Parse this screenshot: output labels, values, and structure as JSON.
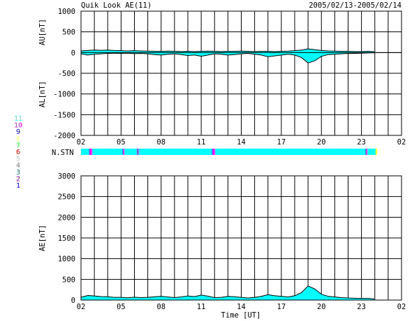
{
  "header": {
    "title": "Quik Look AE(11)",
    "date_range": "2005/02/13-2005/02/14"
  },
  "colors": {
    "fill": "#00ffff",
    "line": "#000000",
    "grid": "#000000",
    "stn_bar": "#00ffff",
    "stn_markers": "#ff00ff",
    "stn_end": "#ffff00"
  },
  "chart_data": [
    {
      "type": "area",
      "title": "",
      "ylabel_upper": "AU[nT]",
      "ylabel_lower": "AL[nT]",
      "ylim": [
        -2000,
        1000
      ],
      "yticks": [
        "1000",
        "500",
        "0",
        "-500",
        "-1000",
        "-1500",
        "-2000"
      ],
      "xlim_hours": [
        2,
        26
      ],
      "xtick_labels": [
        "02",
        "05",
        "08",
        "11",
        "14",
        "17",
        "20",
        "23",
        "02"
      ],
      "series": [
        {
          "values_note": "AU (positive) and AL (negative) envelopes",
          "x": [
            2,
            2.5,
            3,
            3.5,
            4,
            4.5,
            5,
            5.5,
            6,
            6.5,
            7,
            7.5,
            8,
            8.5,
            9,
            9.5,
            10,
            10.5,
            11,
            11.5,
            12,
            12.5,
            13,
            13.5,
            14,
            14.5,
            15,
            15.5,
            16,
            16.5,
            17,
            17.5,
            18,
            18.5,
            19,
            19.5,
            20,
            20.5,
            21,
            21.5,
            22,
            22.5,
            23,
            23.5,
            24
          ],
          "au": [
            40,
            50,
            60,
            55,
            60,
            50,
            45,
            40,
            45,
            40,
            35,
            30,
            30,
            35,
            30,
            25,
            30,
            25,
            30,
            35,
            30,
            25,
            30,
            30,
            35,
            30,
            25,
            30,
            30,
            25,
            30,
            35,
            45,
            60,
            90,
            70,
            50,
            40,
            35,
            30,
            30,
            25,
            25,
            30,
            20
          ],
          "al": [
            -30,
            -60,
            -40,
            -30,
            -20,
            -15,
            -20,
            -15,
            -25,
            -20,
            -30,
            -50,
            -60,
            -40,
            -30,
            -50,
            -70,
            -60,
            -90,
            -60,
            -30,
            -40,
            -60,
            -50,
            -30,
            -20,
            -40,
            -60,
            -100,
            -80,
            -60,
            -40,
            -60,
            -120,
            -250,
            -200,
            -90,
            -50,
            -40,
            -30,
            -20,
            -20,
            -15,
            -10,
            -5
          ]
        }
      ]
    },
    {
      "type": "bar",
      "ylabel": "N.STN",
      "legend_numbers": [
        "11",
        "10",
        "9",
        "8",
        "7",
        "6",
        "5",
        "4",
        "3",
        "2",
        "1"
      ],
      "legend_colors": [
        "#00ffff",
        "#ff00ff",
        "#0000ff",
        "#ffff80",
        "#00ff00",
        "#ff0000",
        "#c0c0c0",
        "#808080",
        "#008080",
        "#800080",
        "#0000ff"
      ],
      "stations_value": 11,
      "drops_hours": [
        2.6,
        2.7,
        5.1,
        6.2,
        11.8,
        11.9,
        23.3
      ]
    },
    {
      "type": "area",
      "ylabel": "AE[nT]",
      "xlabel": "Time [UT]",
      "ylim": [
        0,
        3000
      ],
      "yticks": [
        "3000",
        "2500",
        "2000",
        "1500",
        "1000",
        "500",
        "0"
      ],
      "xlim_hours": [
        2,
        26
      ],
      "xtick_labels": [
        "02",
        "05",
        "08",
        "11",
        "14",
        "17",
        "20",
        "23",
        "02"
      ],
      "series": [
        {
          "x": [
            2,
            2.5,
            3,
            3.5,
            4,
            4.5,
            5,
            5.5,
            6,
            6.5,
            7,
            7.5,
            8,
            8.5,
            9,
            9.5,
            10,
            10.5,
            11,
            11.5,
            12,
            12.5,
            13,
            13.5,
            14,
            14.5,
            15,
            15.5,
            16,
            16.5,
            17,
            17.5,
            18,
            18.5,
            19,
            19.5,
            20,
            20.5,
            21,
            21.5,
            22,
            22.5,
            23,
            23.5,
            24
          ],
          "values": [
            70,
            110,
            100,
            85,
            80,
            65,
            65,
            55,
            70,
            60,
            65,
            80,
            90,
            75,
            60,
            75,
            100,
            85,
            120,
            95,
            60,
            65,
            90,
            80,
            65,
            50,
            65,
            90,
            130,
            105,
            90,
            75,
            105,
            180,
            340,
            270,
            140,
            90,
            75,
            60,
            50,
            45,
            40,
            40,
            25
          ]
        }
      ]
    }
  ]
}
